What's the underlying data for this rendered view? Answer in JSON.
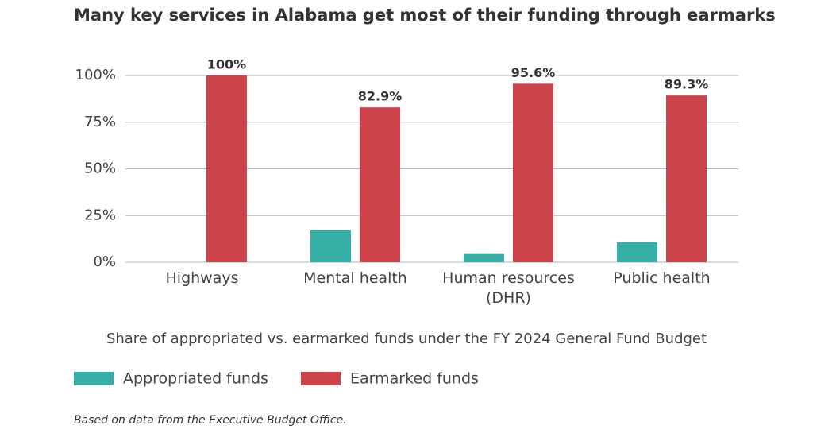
{
  "chart_data": {
    "type": "bar",
    "title": "Many key services in Alabama get most of their funding through earmarks",
    "subtitle": "Share of appropriated vs. earmarked funds under the FY 2024 General Fund Budget",
    "note": "Based on data from the Executive Budget Office.",
    "categories": [
      "Highways",
      "Mental health",
      "Human resources (DHR)",
      "Public health"
    ],
    "series": [
      {
        "name": "Appropriated funds",
        "color": "#36b0a6",
        "values": [
          0,
          17.1,
          4.4,
          10.7
        ]
      },
      {
        "name": "Earmarked funds",
        "color": "#cc4449",
        "values": [
          100,
          82.9,
          95.6,
          89.3
        ],
        "value_labels": [
          "100%",
          "82.9%",
          "95.6%",
          "89.3%"
        ]
      }
    ],
    "ylim": [
      0,
      100
    ],
    "yticks": [
      {
        "value": 0,
        "label": "0%"
      },
      {
        "value": 25,
        "label": "25%"
      },
      {
        "value": 50,
        "label": "50%"
      },
      {
        "value": 75,
        "label": "75%"
      },
      {
        "value": 100,
        "label": "100%"
      }
    ],
    "grid": true
  }
}
